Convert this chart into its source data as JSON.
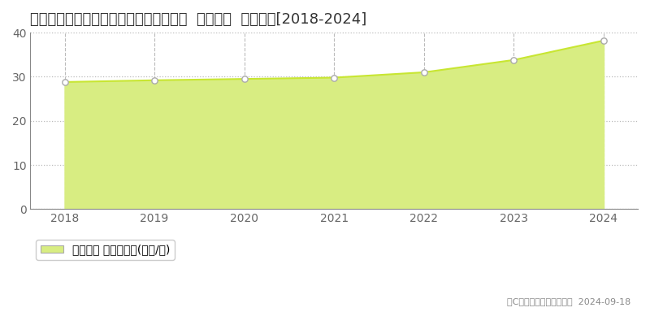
{
  "title": "茨城県つくば市学園の森２丁目２９番３  基準地価  地価推移[2018-2024]",
  "years": [
    2018,
    2019,
    2020,
    2021,
    2022,
    2023,
    2024
  ],
  "values": [
    28.8,
    29.2,
    29.5,
    29.8,
    31.0,
    33.8,
    38.2
  ],
  "line_color": "#c8e632",
  "fill_color": "#d8ed82",
  "marker_facecolor": "#ffffff",
  "marker_edgecolor": "#aaaaaa",
  "ylim": [
    0,
    40
  ],
  "yticks": [
    0,
    10,
    20,
    30,
    40
  ],
  "xlim_min": 2017.62,
  "xlim_max": 2024.38,
  "grid_color": "#bbbbbb",
  "bg_color": "#ffffff",
  "legend_label": "基準地価 平均坪単価(万円/坪)",
  "copyright_text": "（C）土地価格ドットコム  2024-09-18",
  "title_fontsize": 13,
  "axis_fontsize": 10,
  "legend_fontsize": 10,
  "tick_color": "#666666",
  "spine_color": "#888888"
}
